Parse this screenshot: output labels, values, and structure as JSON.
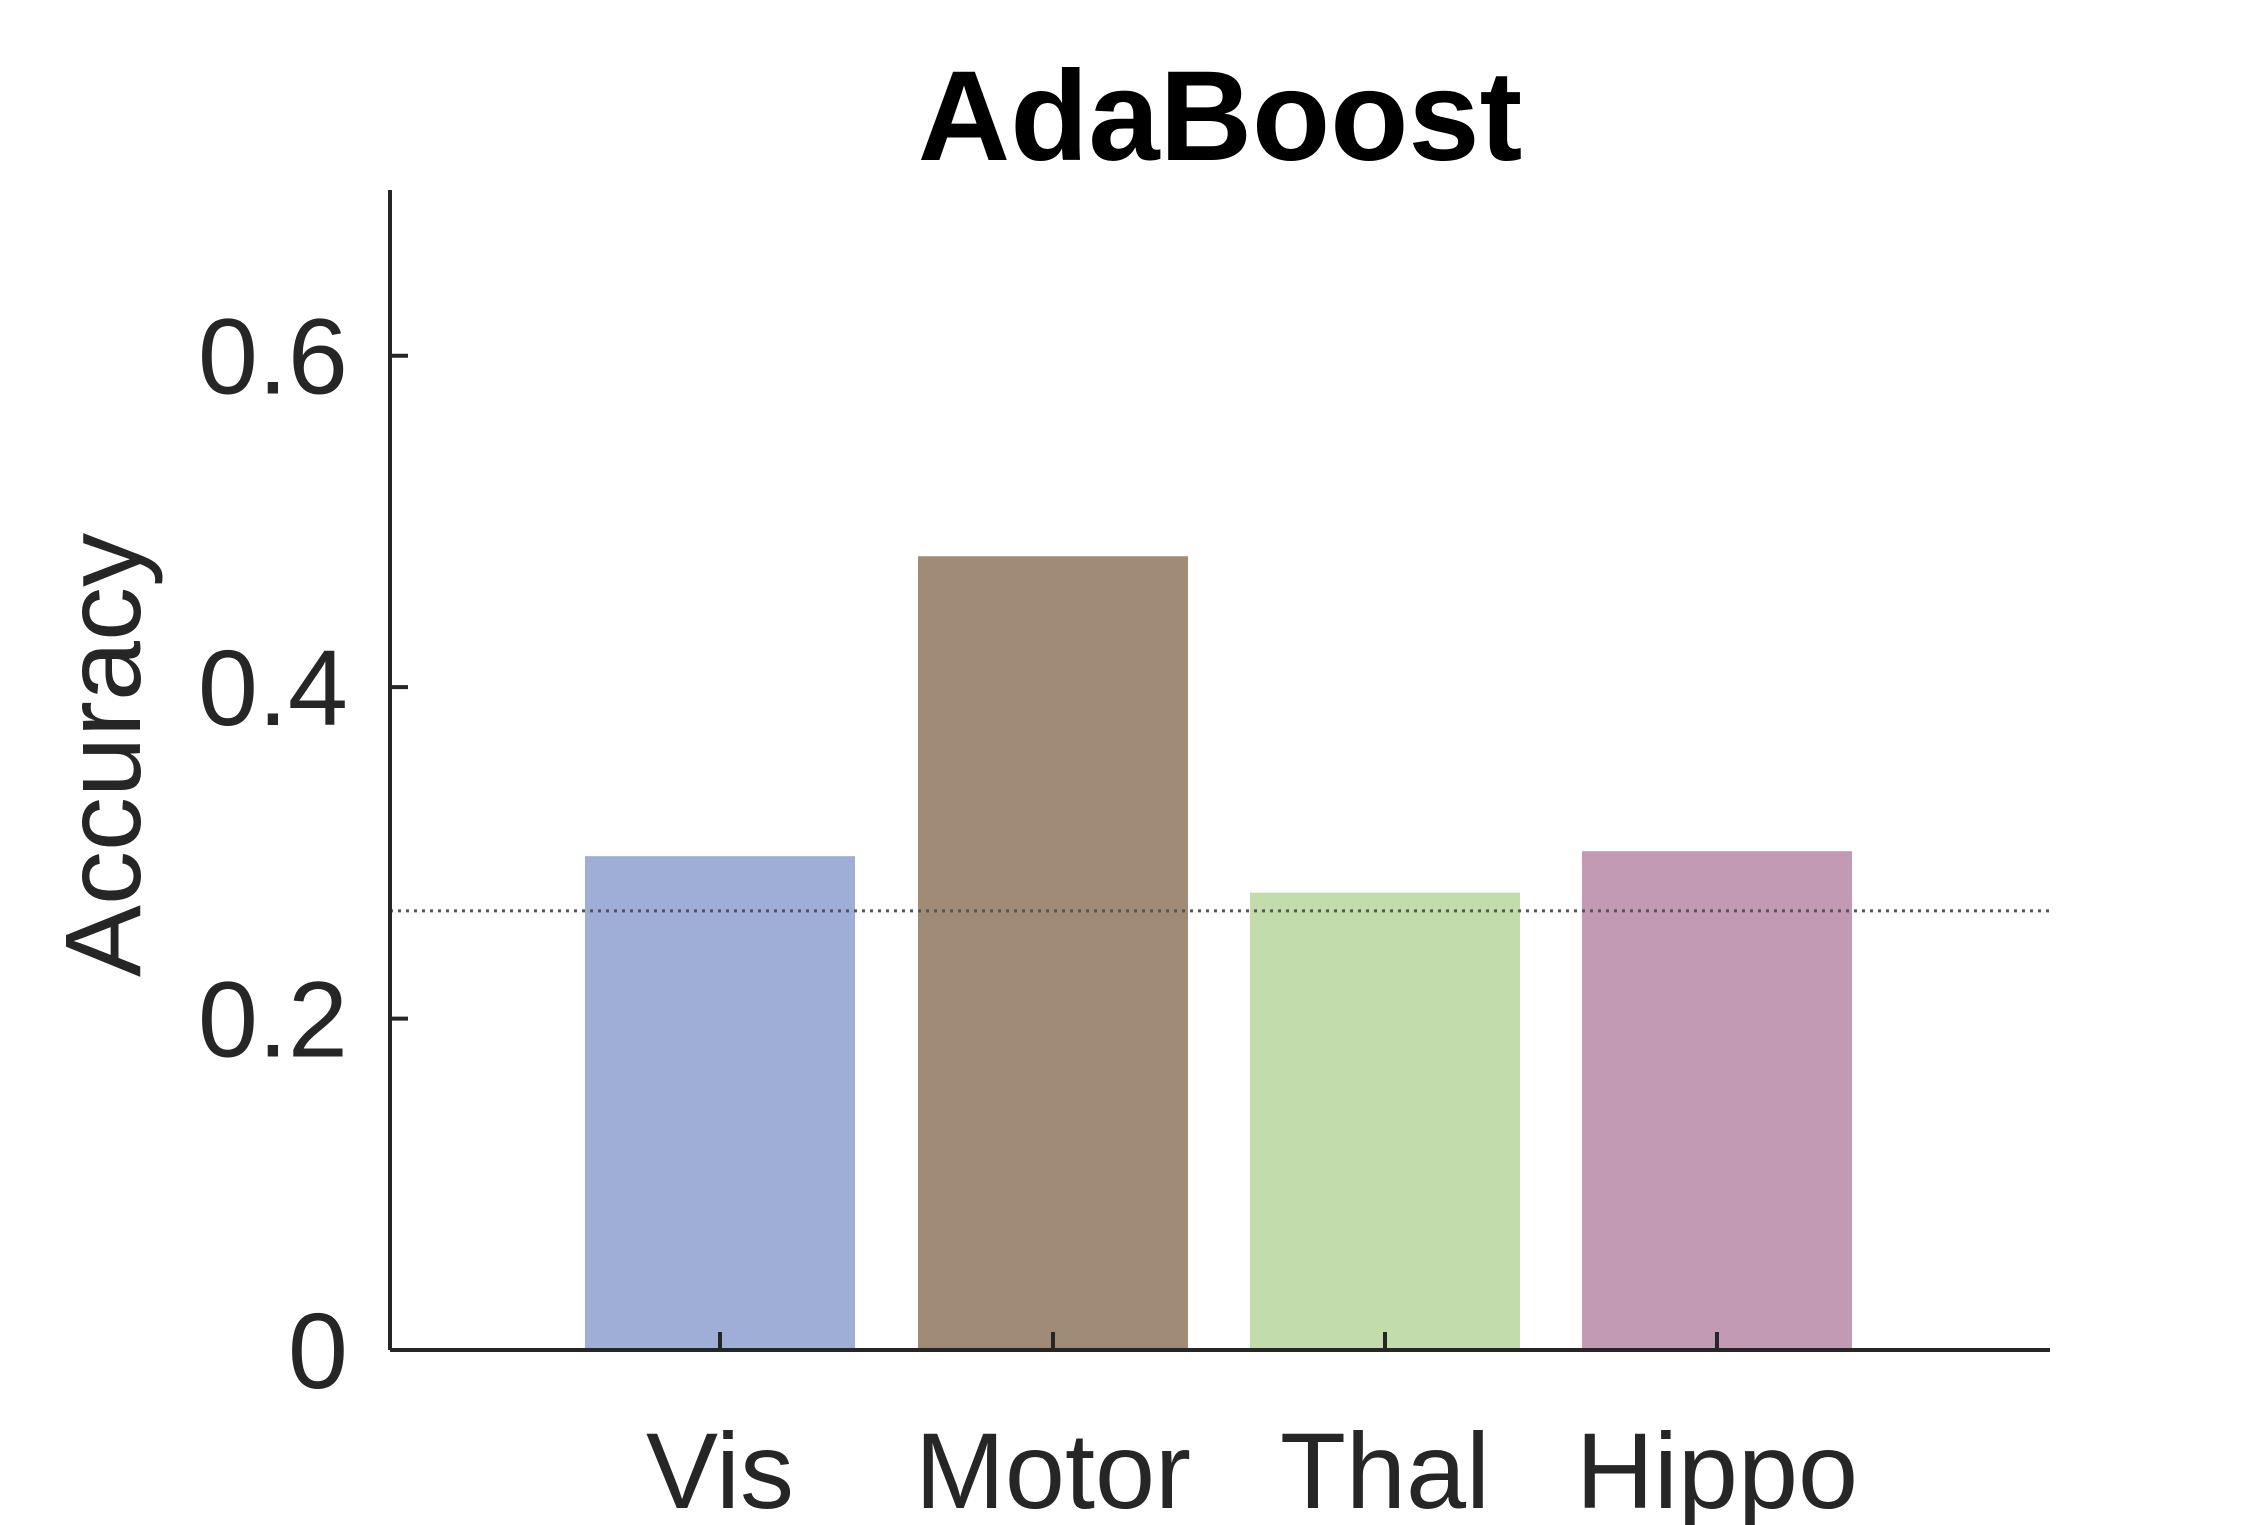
{
  "chart_data": {
    "type": "bar",
    "title": "AdaBoost",
    "xlabel": "",
    "ylabel": "Accuracy",
    "categories": [
      "Vis",
      "Motor",
      "Thal",
      "Hippo"
    ],
    "values": [
      0.298,
      0.479,
      0.276,
      0.301
    ],
    "colors": [
      "#9eaed6",
      "#a08b77",
      "#c3dcab",
      "#c39ab4"
    ],
    "ylim": [
      0,
      0.7
    ],
    "yticks": [
      0,
      0.2,
      0.4,
      0.6
    ],
    "ytick_labels": [
      "0",
      "0.2",
      "0.4",
      "0.6"
    ],
    "reference_line": {
      "value": 0.265,
      "style": "dotted",
      "color": "#555555"
    },
    "grid": false,
    "legend": "none"
  }
}
